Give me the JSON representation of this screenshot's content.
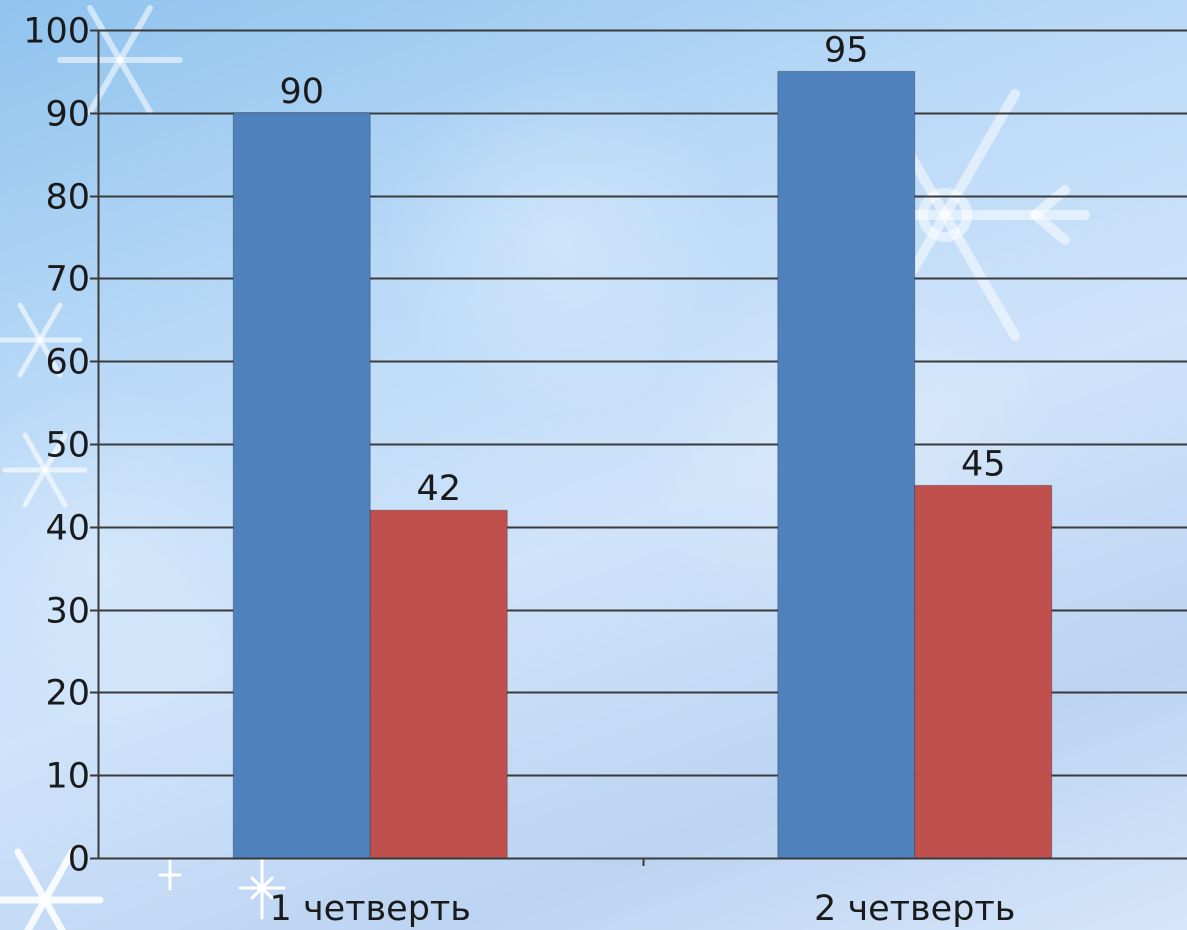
{
  "chart_data": {
    "type": "bar",
    "categories": [
      "1 четверть",
      "2 четверть"
    ],
    "series": [
      {
        "values": [
          90,
          95
        ],
        "color": "#4f81bd"
      },
      {
        "values": [
          42,
          45
        ],
        "color": "#c0504d"
      }
    ],
    "ylim": [
      0,
      100
    ],
    "yticks": [
      0,
      10,
      20,
      30,
      40,
      50,
      60,
      70,
      80,
      90,
      100
    ],
    "grid": true,
    "data_labels": true,
    "background": "winter snowflake gradient"
  }
}
